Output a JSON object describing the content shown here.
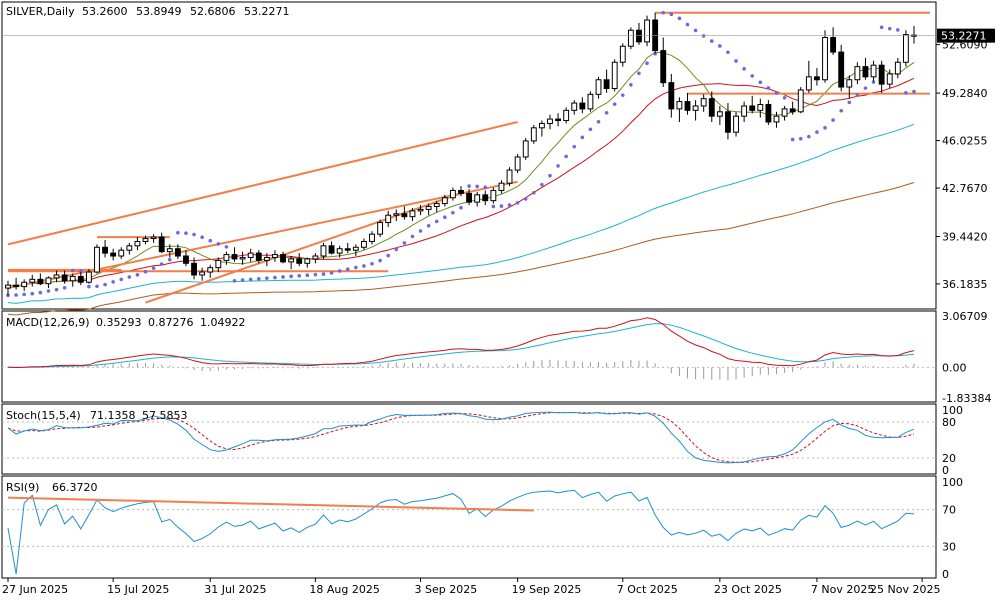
{
  "colors": {
    "background": "#ffffff",
    "frame": "#000000",
    "bull_candle": "#ffffff",
    "bear_candle": "#000000",
    "ma_fast": "#6b8e23",
    "ma_mid": "#d2111a",
    "ma_slow_blue": "#1fb3d2",
    "ma_slow_brown": "#b35a1f",
    "sar": "#6a6ae0",
    "trendline": "#f07f4a",
    "macd_signal": "#d2111a",
    "macd_main": "#1fb3d2",
    "histogram": "#9a9a9a",
    "stoch_main": "#1f8fd2",
    "stoch_signal": "#d2111a",
    "rsi": "#1f8fd2",
    "current_price_tag": "#000000"
  },
  "chart_data": [
    {
      "type": "candlestick",
      "panel": "main",
      "title": "SILVER,Daily",
      "ohlc_header": [
        "53.2600",
        "53.8949",
        "52.6806",
        "53.2271"
      ],
      "current_price_label": "53.2271",
      "y_ticks": [
        "52.6090",
        "49.2840",
        "46.0255",
        "42.7670",
        "39.4420",
        "36.1835"
      ],
      "ylim": [
        34.6,
        55.4
      ],
      "x_labels": [
        "27 Jun 2025",
        "15 Jul 2025",
        "31 Jul 2025",
        "18 Aug 2025",
        "3 Sep 2025",
        "19 Sep 2025",
        "7 Oct 2025",
        "23 Oct 2025",
        "7 Nov 2025",
        "25 Nov 2025"
      ],
      "x_label_bar_index": [
        0,
        13,
        25,
        38,
        51,
        63,
        76,
        88,
        100,
        113
      ],
      "ohlc": [
        [
          35.9,
          36.4,
          35.4,
          36.1
        ],
        [
          36.1,
          36.6,
          35.8,
          36.0
        ],
        [
          36.0,
          36.5,
          35.7,
          36.3
        ],
        [
          36.3,
          36.8,
          36.0,
          36.5
        ],
        [
          36.5,
          36.9,
          36.1,
          36.2
        ],
        [
          36.2,
          36.7,
          35.9,
          36.6
        ],
        [
          36.6,
          37.1,
          36.3,
          36.8
        ],
        [
          36.8,
          37.1,
          36.2,
          36.4
        ],
        [
          36.4,
          36.9,
          36.0,
          36.7
        ],
        [
          36.7,
          37.0,
          36.1,
          36.3
        ],
        [
          36.3,
          37.2,
          36.2,
          37.0
        ],
        [
          37.0,
          38.9,
          36.9,
          38.7
        ],
        [
          38.7,
          39.2,
          38.0,
          38.3
        ],
        [
          38.3,
          38.6,
          37.8,
          38.1
        ],
        [
          38.1,
          38.7,
          37.9,
          38.5
        ],
        [
          38.5,
          39.0,
          38.2,
          38.8
        ],
        [
          38.8,
          39.4,
          38.5,
          39.1
        ],
        [
          39.1,
          39.5,
          38.9,
          39.3
        ],
        [
          39.3,
          39.6,
          39.0,
          39.4
        ],
        [
          39.4,
          39.7,
          38.3,
          38.4
        ],
        [
          38.4,
          38.9,
          38.0,
          38.6
        ],
        [
          38.6,
          38.9,
          37.9,
          38.1
        ],
        [
          38.1,
          38.5,
          37.4,
          37.6
        ],
        [
          37.6,
          38.0,
          36.5,
          36.8
        ],
        [
          36.8,
          37.3,
          36.4,
          37.0
        ],
        [
          37.0,
          37.5,
          36.6,
          37.3
        ],
        [
          37.3,
          38.0,
          37.0,
          37.8
        ],
        [
          37.8,
          38.4,
          37.5,
          38.2
        ],
        [
          38.2,
          38.7,
          37.7,
          37.9
        ],
        [
          37.9,
          38.4,
          37.5,
          38.0
        ],
        [
          38.0,
          38.6,
          37.7,
          38.3
        ],
        [
          38.3,
          38.5,
          37.6,
          37.8
        ],
        [
          37.8,
          38.3,
          37.4,
          38.0
        ],
        [
          38.0,
          38.5,
          37.7,
          38.2
        ],
        [
          38.2,
          38.4,
          37.6,
          37.7
        ],
        [
          37.7,
          38.1,
          37.2,
          37.9
        ],
        [
          37.9,
          38.3,
          37.4,
          37.6
        ],
        [
          37.6,
          38.0,
          37.3,
          37.9
        ],
        [
          37.9,
          38.3,
          37.6,
          38.1
        ],
        [
          38.1,
          39.0,
          37.9,
          38.8
        ],
        [
          38.8,
          39.1,
          38.2,
          38.3
        ],
        [
          38.3,
          38.8,
          38.0,
          38.6
        ],
        [
          38.6,
          39.0,
          38.3,
          38.5
        ],
        [
          38.5,
          38.9,
          38.1,
          38.7
        ],
        [
          38.7,
          39.3,
          38.5,
          39.1
        ],
        [
          39.1,
          39.8,
          38.9,
          39.6
        ],
        [
          39.6,
          40.6,
          39.4,
          40.4
        ],
        [
          40.4,
          41.2,
          40.1,
          40.9
        ],
        [
          40.9,
          41.3,
          40.5,
          41.0
        ],
        [
          41.0,
          41.5,
          40.6,
          40.8
        ],
        [
          40.8,
          41.4,
          40.5,
          41.2
        ],
        [
          41.2,
          41.6,
          40.9,
          41.3
        ],
        [
          41.3,
          41.7,
          40.9,
          41.5
        ],
        [
          41.5,
          41.9,
          41.1,
          41.7
        ],
        [
          41.7,
          42.3,
          41.5,
          42.1
        ],
        [
          42.1,
          42.8,
          41.9,
          42.6
        ],
        [
          42.6,
          42.9,
          42.2,
          42.4
        ],
        [
          42.4,
          42.7,
          41.6,
          41.8
        ],
        [
          41.8,
          42.5,
          41.5,
          42.3
        ],
        [
          42.3,
          42.6,
          41.6,
          41.9
        ],
        [
          41.9,
          42.8,
          41.7,
          42.6
        ],
        [
          42.6,
          43.3,
          42.4,
          43.1
        ],
        [
          43.1,
          44.2,
          42.9,
          44.0
        ],
        [
          44.0,
          45.1,
          43.8,
          44.9
        ],
        [
          44.9,
          46.2,
          44.7,
          46.0
        ],
        [
          46.0,
          47.1,
          45.8,
          46.9
        ],
        [
          46.9,
          47.4,
          46.3,
          47.2
        ],
        [
          47.2,
          47.8,
          46.8,
          47.5
        ],
        [
          47.5,
          47.9,
          47.0,
          47.4
        ],
        [
          47.4,
          48.3,
          47.2,
          48.1
        ],
        [
          48.1,
          48.8,
          47.8,
          48.6
        ],
        [
          48.6,
          49.0,
          47.9,
          48.2
        ],
        [
          48.2,
          49.4,
          48.0,
          49.2
        ],
        [
          49.2,
          50.4,
          48.9,
          50.2
        ],
        [
          50.2,
          50.9,
          49.3,
          49.6
        ],
        [
          49.6,
          51.6,
          49.4,
          51.4
        ],
        [
          51.4,
          52.7,
          51.1,
          52.5
        ],
        [
          52.5,
          53.8,
          52.3,
          53.6
        ],
        [
          53.6,
          54.1,
          52.6,
          52.8
        ],
        [
          52.8,
          54.6,
          52.5,
          54.3
        ],
        [
          54.3,
          54.8,
          52.0,
          52.2
        ],
        [
          52.2,
          53.1,
          49.7,
          50.0
        ],
        [
          50.0,
          50.6,
          47.6,
          48.2
        ],
        [
          48.2,
          49.0,
          47.3,
          48.7
        ],
        [
          48.7,
          49.3,
          47.8,
          48.1
        ],
        [
          48.1,
          48.8,
          47.4,
          48.4
        ],
        [
          48.4,
          49.2,
          48.0,
          48.9
        ],
        [
          48.9,
          49.4,
          47.3,
          47.7
        ],
        [
          47.7,
          48.4,
          47.1,
          48.0
        ],
        [
          48.0,
          48.6,
          46.1,
          46.6
        ],
        [
          46.6,
          48.0,
          46.3,
          47.7
        ],
        [
          47.7,
          48.7,
          47.3,
          48.4
        ],
        [
          48.4,
          49.1,
          47.9,
          48.1
        ],
        [
          48.1,
          48.9,
          47.6,
          48.5
        ],
        [
          48.5,
          48.8,
          47.1,
          47.3
        ],
        [
          47.3,
          48.0,
          46.9,
          47.7
        ],
        [
          47.7,
          48.4,
          47.4,
          48.2
        ],
        [
          48.2,
          48.7,
          47.8,
          48.0
        ],
        [
          48.0,
          49.7,
          47.9,
          49.5
        ],
        [
          49.5,
          51.5,
          49.3,
          50.4
        ],
        [
          50.4,
          51.0,
          49.8,
          50.2
        ],
        [
          50.2,
          53.6,
          50.0,
          53.1
        ],
        [
          53.1,
          53.8,
          51.9,
          52.1
        ],
        [
          52.1,
          52.6,
          49.4,
          49.7
        ],
        [
          49.7,
          50.5,
          48.9,
          50.2
        ],
        [
          50.2,
          51.4,
          49.9,
          51.1
        ],
        [
          51.1,
          51.7,
          50.2,
          50.4
        ],
        [
          50.4,
          51.5,
          50.1,
          51.2
        ],
        [
          51.2,
          51.5,
          49.3,
          49.9
        ],
        [
          49.9,
          50.9,
          49.6,
          50.6
        ],
        [
          50.6,
          51.7,
          50.3,
          51.4
        ],
        [
          51.4,
          53.6,
          51.1,
          53.3
        ],
        [
          53.26,
          53.8949,
          52.6806,
          53.2271
        ]
      ],
      "horizontal_levels": [
        {
          "name": "resistance-top",
          "value": 54.8,
          "from_bar": 80,
          "to_bar": 116
        },
        {
          "name": "support-mid",
          "value": 49.25,
          "from_bar": 84,
          "to_bar": 116
        },
        {
          "name": "range-high-jul",
          "value": 39.4,
          "from_bar": 11,
          "to_bar": 20
        },
        {
          "name": "range-low-jun",
          "value": 37.15,
          "from_bar": 0,
          "to_bar": 14
        }
      ],
      "trendlines": [
        {
          "name": "channel-upper",
          "from": [
            0,
            38.9
          ],
          "to": [
            63,
            47.3
          ]
        },
        {
          "name": "channel-lower",
          "from": [
            0,
            35.9
          ],
          "to": [
            63,
            43.2
          ]
        },
        {
          "name": "channel-inner",
          "from": [
            17,
            34.9
          ],
          "to": [
            56,
            42.4
          ]
        },
        {
          "name": "support-flat",
          "from": [
            0,
            37.05
          ],
          "to": [
            47,
            37.05
          ]
        }
      ]
    },
    {
      "type": "line",
      "panel": "macd",
      "label": "MACD(12,26,9)",
      "values_text": [
        "0.35293",
        "0.87276",
        "1.04922"
      ],
      "y_ticks": [
        "3.06709",
        "0.00",
        "-1.83384"
      ],
      "ylim": [
        -1.83384,
        3.06709
      ]
    },
    {
      "type": "line",
      "panel": "stochastic",
      "label": "Stoch(15,5,4)",
      "values_text": [
        "71.1358",
        "57.5853"
      ],
      "y_ticks": [
        "100",
        "80",
        "20",
        "0"
      ],
      "ylim": [
        0,
        100
      ]
    },
    {
      "type": "line",
      "panel": "rsi",
      "label": "RSI(9)",
      "values_text": [
        "66.3720"
      ],
      "y_ticks": [
        "100",
        "70",
        "30",
        "0"
      ],
      "ylim": [
        0,
        100
      ]
    }
  ]
}
